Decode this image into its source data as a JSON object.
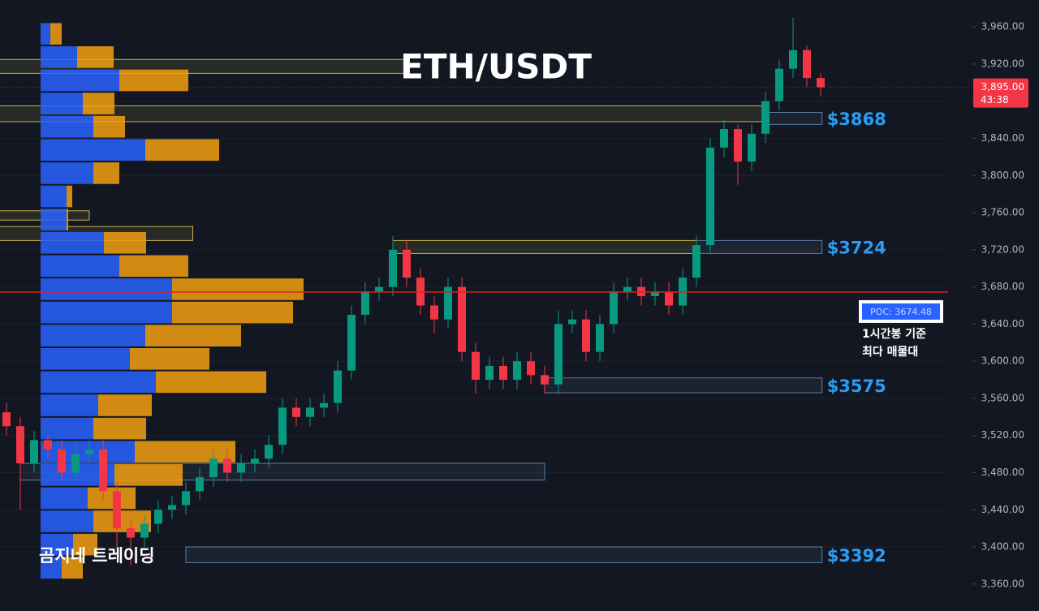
{
  "chart_data": {
    "type": "candlestick",
    "title": "ETH/USDT",
    "watermark": "곰지네 트레이딩",
    "annotation": [
      "1시간봉 기준",
      "최다 매물대"
    ],
    "ylim": [
      3331,
      3989
    ],
    "yticks": [
      {
        "value": 3360,
        "label": "3,360.00"
      },
      {
        "value": 3400,
        "label": "3,400.00"
      },
      {
        "value": 3440,
        "label": "3,440.00"
      },
      {
        "value": 3480,
        "label": "3,480.00"
      },
      {
        "value": 3520,
        "label": "3,520.00"
      },
      {
        "value": 3560,
        "label": "3,560.00"
      },
      {
        "value": 3600,
        "label": "3,600.00"
      },
      {
        "value": 3640,
        "label": "3,640.00"
      },
      {
        "value": 3680,
        "label": "3,680.00"
      },
      {
        "value": 3720,
        "label": "3,720.00"
      },
      {
        "value": 3760,
        "label": "3,760.00"
      },
      {
        "value": 3800,
        "label": "3,800.00"
      },
      {
        "value": 3840,
        "label": "3,840.00"
      },
      {
        "value": 3880,
        "label": "3,880.00"
      },
      {
        "value": 3920,
        "label": "3,920.00"
      },
      {
        "value": 3960,
        "label": "3,960.00"
      }
    ],
    "grid": true,
    "up_color": "#089981",
    "down_color": "#f23645",
    "open": [
      3545,
      3530,
      3490,
      3515,
      3505,
      3480,
      3500,
      3505,
      3460,
      3420,
      3410,
      3425,
      3440,
      3445,
      3460,
      3475,
      3495,
      3480,
      3490,
      3495,
      3510,
      3550,
      3540,
      3550,
      3555,
      3590,
      3650,
      3675,
      3680,
      3720,
      3690,
      3660,
      3645,
      3680,
      3610,
      3580,
      3595,
      3580,
      3600,
      3585,
      3575,
      3640,
      3645,
      3610,
      3640,
      3675,
      3680,
      3670,
      3675,
      3660,
      3690,
      3725,
      3830,
      3850,
      3815,
      3845,
      3880,
      3915,
      3935,
      3905
    ],
    "high": [
      3555,
      3540,
      3525,
      3520,
      3515,
      3510,
      3515,
      3515,
      3470,
      3430,
      3435,
      3450,
      3455,
      3470,
      3485,
      3505,
      3505,
      3500,
      3505,
      3520,
      3560,
      3560,
      3560,
      3565,
      3600,
      3660,
      3685,
      3690,
      3735,
      3730,
      3700,
      3670,
      3690,
      3690,
      3620,
      3605,
      3605,
      3610,
      3610,
      3595,
      3655,
      3655,
      3655,
      3650,
      3685,
      3690,
      3690,
      3685,
      3685,
      3700,
      3735,
      3840,
      3860,
      3855,
      3855,
      3890,
      3925,
      3970,
      3940,
      3910
    ],
    "low": [
      3520,
      3440,
      3480,
      3495,
      3470,
      3470,
      3490,
      3450,
      3400,
      3380,
      3400,
      3415,
      3430,
      3435,
      3450,
      3465,
      3470,
      3470,
      3480,
      3485,
      3500,
      3530,
      3530,
      3540,
      3545,
      3580,
      3640,
      3665,
      3670,
      3680,
      3650,
      3630,
      3635,
      3600,
      3565,
      3570,
      3570,
      3570,
      3575,
      3565,
      3565,
      3630,
      3600,
      3600,
      3630,
      3665,
      3660,
      3660,
      3650,
      3650,
      3680,
      3715,
      3820,
      3790,
      3805,
      3835,
      3870,
      3905,
      3895,
      3885
    ],
    "close": [
      3530,
      3490,
      3515,
      3505,
      3480,
      3500,
      3505,
      3460,
      3420,
      3410,
      3425,
      3440,
      3445,
      3460,
      3475,
      3495,
      3480,
      3490,
      3495,
      3510,
      3550,
      3540,
      3550,
      3555,
      3590,
      3650,
      3675,
      3680,
      3720,
      3690,
      3660,
      3645,
      3680,
      3610,
      3580,
      3595,
      3580,
      3600,
      3585,
      3575,
      3640,
      3645,
      3610,
      3640,
      3675,
      3680,
      3670,
      3675,
      3660,
      3690,
      3725,
      3830,
      3850,
      3815,
      3845,
      3880,
      3915,
      3935,
      3905,
      3895
    ],
    "profile": {
      "levels": [
        3940,
        3915,
        3890,
        3865,
        3840,
        3815,
        3790,
        3765,
        3740,
        3715,
        3690,
        3665,
        3640,
        3615,
        3590,
        3565,
        3540,
        3515,
        3490,
        3465,
        3440,
        3415,
        3390,
        3365
      ],
      "buy": [
        12,
        45,
        97,
        52,
        65,
        129,
        65,
        32,
        32,
        78,
        97,
        162,
        162,
        129,
        110,
        142,
        71,
        65,
        116,
        91,
        58,
        65,
        40,
        26
      ],
      "sell": [
        14,
        45,
        85,
        39,
        39,
        91,
        32,
        7,
        2,
        52,
        85,
        162,
        149,
        118,
        98,
        136,
        66,
        65,
        124,
        84,
        59,
        71,
        30,
        26
      ],
      "buy_color": "#2962ff",
      "sell_color": "#f5a00f"
    },
    "zones": [
      {
        "low": 3910,
        "high": 3925,
        "from": -0.5,
        "to": 29,
        "color": "#c9b24a"
      },
      {
        "low": 3858,
        "high": 3875,
        "from": -0.5,
        "to": 55,
        "color": "#c9b24a"
      },
      {
        "low": 3752,
        "high": 3762,
        "from": -0.5,
        "to": 6,
        "color": "#c9b24a"
      },
      {
        "low": 3730,
        "high": 3745,
        "from": -0.5,
        "to": 13.5,
        "color": "#c9b24a"
      },
      {
        "low": 3716,
        "high": 3730,
        "from": 28,
        "to": 50,
        "color": "#c9b24a"
      },
      {
        "low": 3472,
        "high": 3490,
        "from": 1,
        "to": 39,
        "color": "#5b7fa6"
      },
      {
        "low": 3855,
        "high": 3868,
        "from": 55,
        "to": 59.1,
        "color": "#5b7fa6",
        "label": "$3868"
      },
      {
        "low": 3716,
        "high": 3730,
        "from": 50,
        "to": 59.1,
        "color": "#5b7fa6",
        "label": "$3724"
      },
      {
        "low": 3566,
        "high": 3582,
        "from": 39,
        "to": 59.1,
        "color": "#5b7fa6",
        "label": "$3575"
      },
      {
        "low": 3383,
        "high": 3400,
        "from": 13,
        "to": 59.1,
        "color": "#5b7fa6",
        "label": "$3392"
      }
    ],
    "poc": {
      "value": 3674.48,
      "label": "POC: 3674.48"
    },
    "last_price": {
      "value": 3895,
      "label": "3,895.00"
    },
    "countdown": "43:38"
  }
}
